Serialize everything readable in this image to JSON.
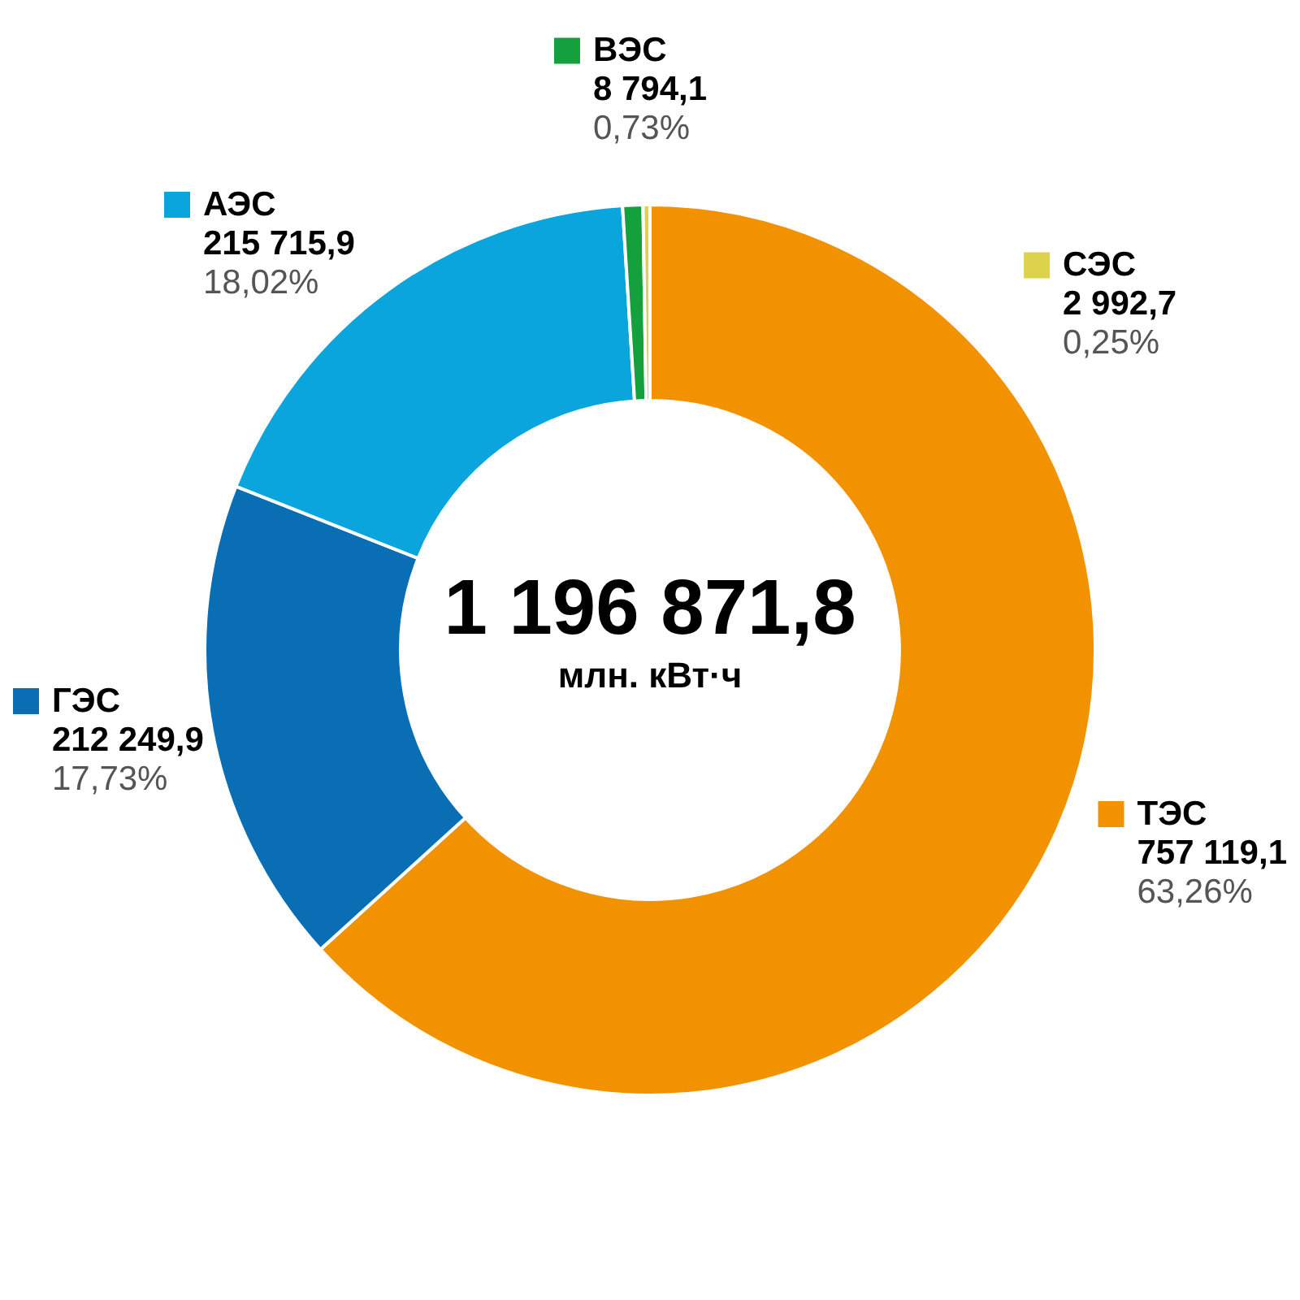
{
  "chart_data": {
    "type": "donut",
    "title": "1 196 871,8",
    "subtitle": "млн. кВт·ч",
    "categories": [
      "ТЭС",
      "ГЭС",
      "АЭС",
      "ВЭС",
      "СЭС"
    ],
    "values": [
      757119.1,
      212249.9,
      215715.9,
      8794.1,
      2992.7
    ],
    "colors": [
      "#f39200",
      "#0a6eb4",
      "#0aa5dc",
      "#14a03c",
      "#dcd24b"
    ],
    "value_labels": [
      "757 119,1",
      "212 249,9",
      "215 715,9",
      "8 794,1",
      "2 992,7"
    ],
    "annotations": [
      {
        "text": "63,26%",
        "x": "ТЭС"
      },
      {
        "text": "17,73%",
        "x": "ГЭС"
      },
      {
        "text": "18,02%",
        "x": "АЭС"
      },
      {
        "text": "0,73%",
        "x": "ВЭС"
      },
      {
        "text": "0,25%",
        "x": "СЭС"
      }
    ],
    "legend": "top"
  }
}
